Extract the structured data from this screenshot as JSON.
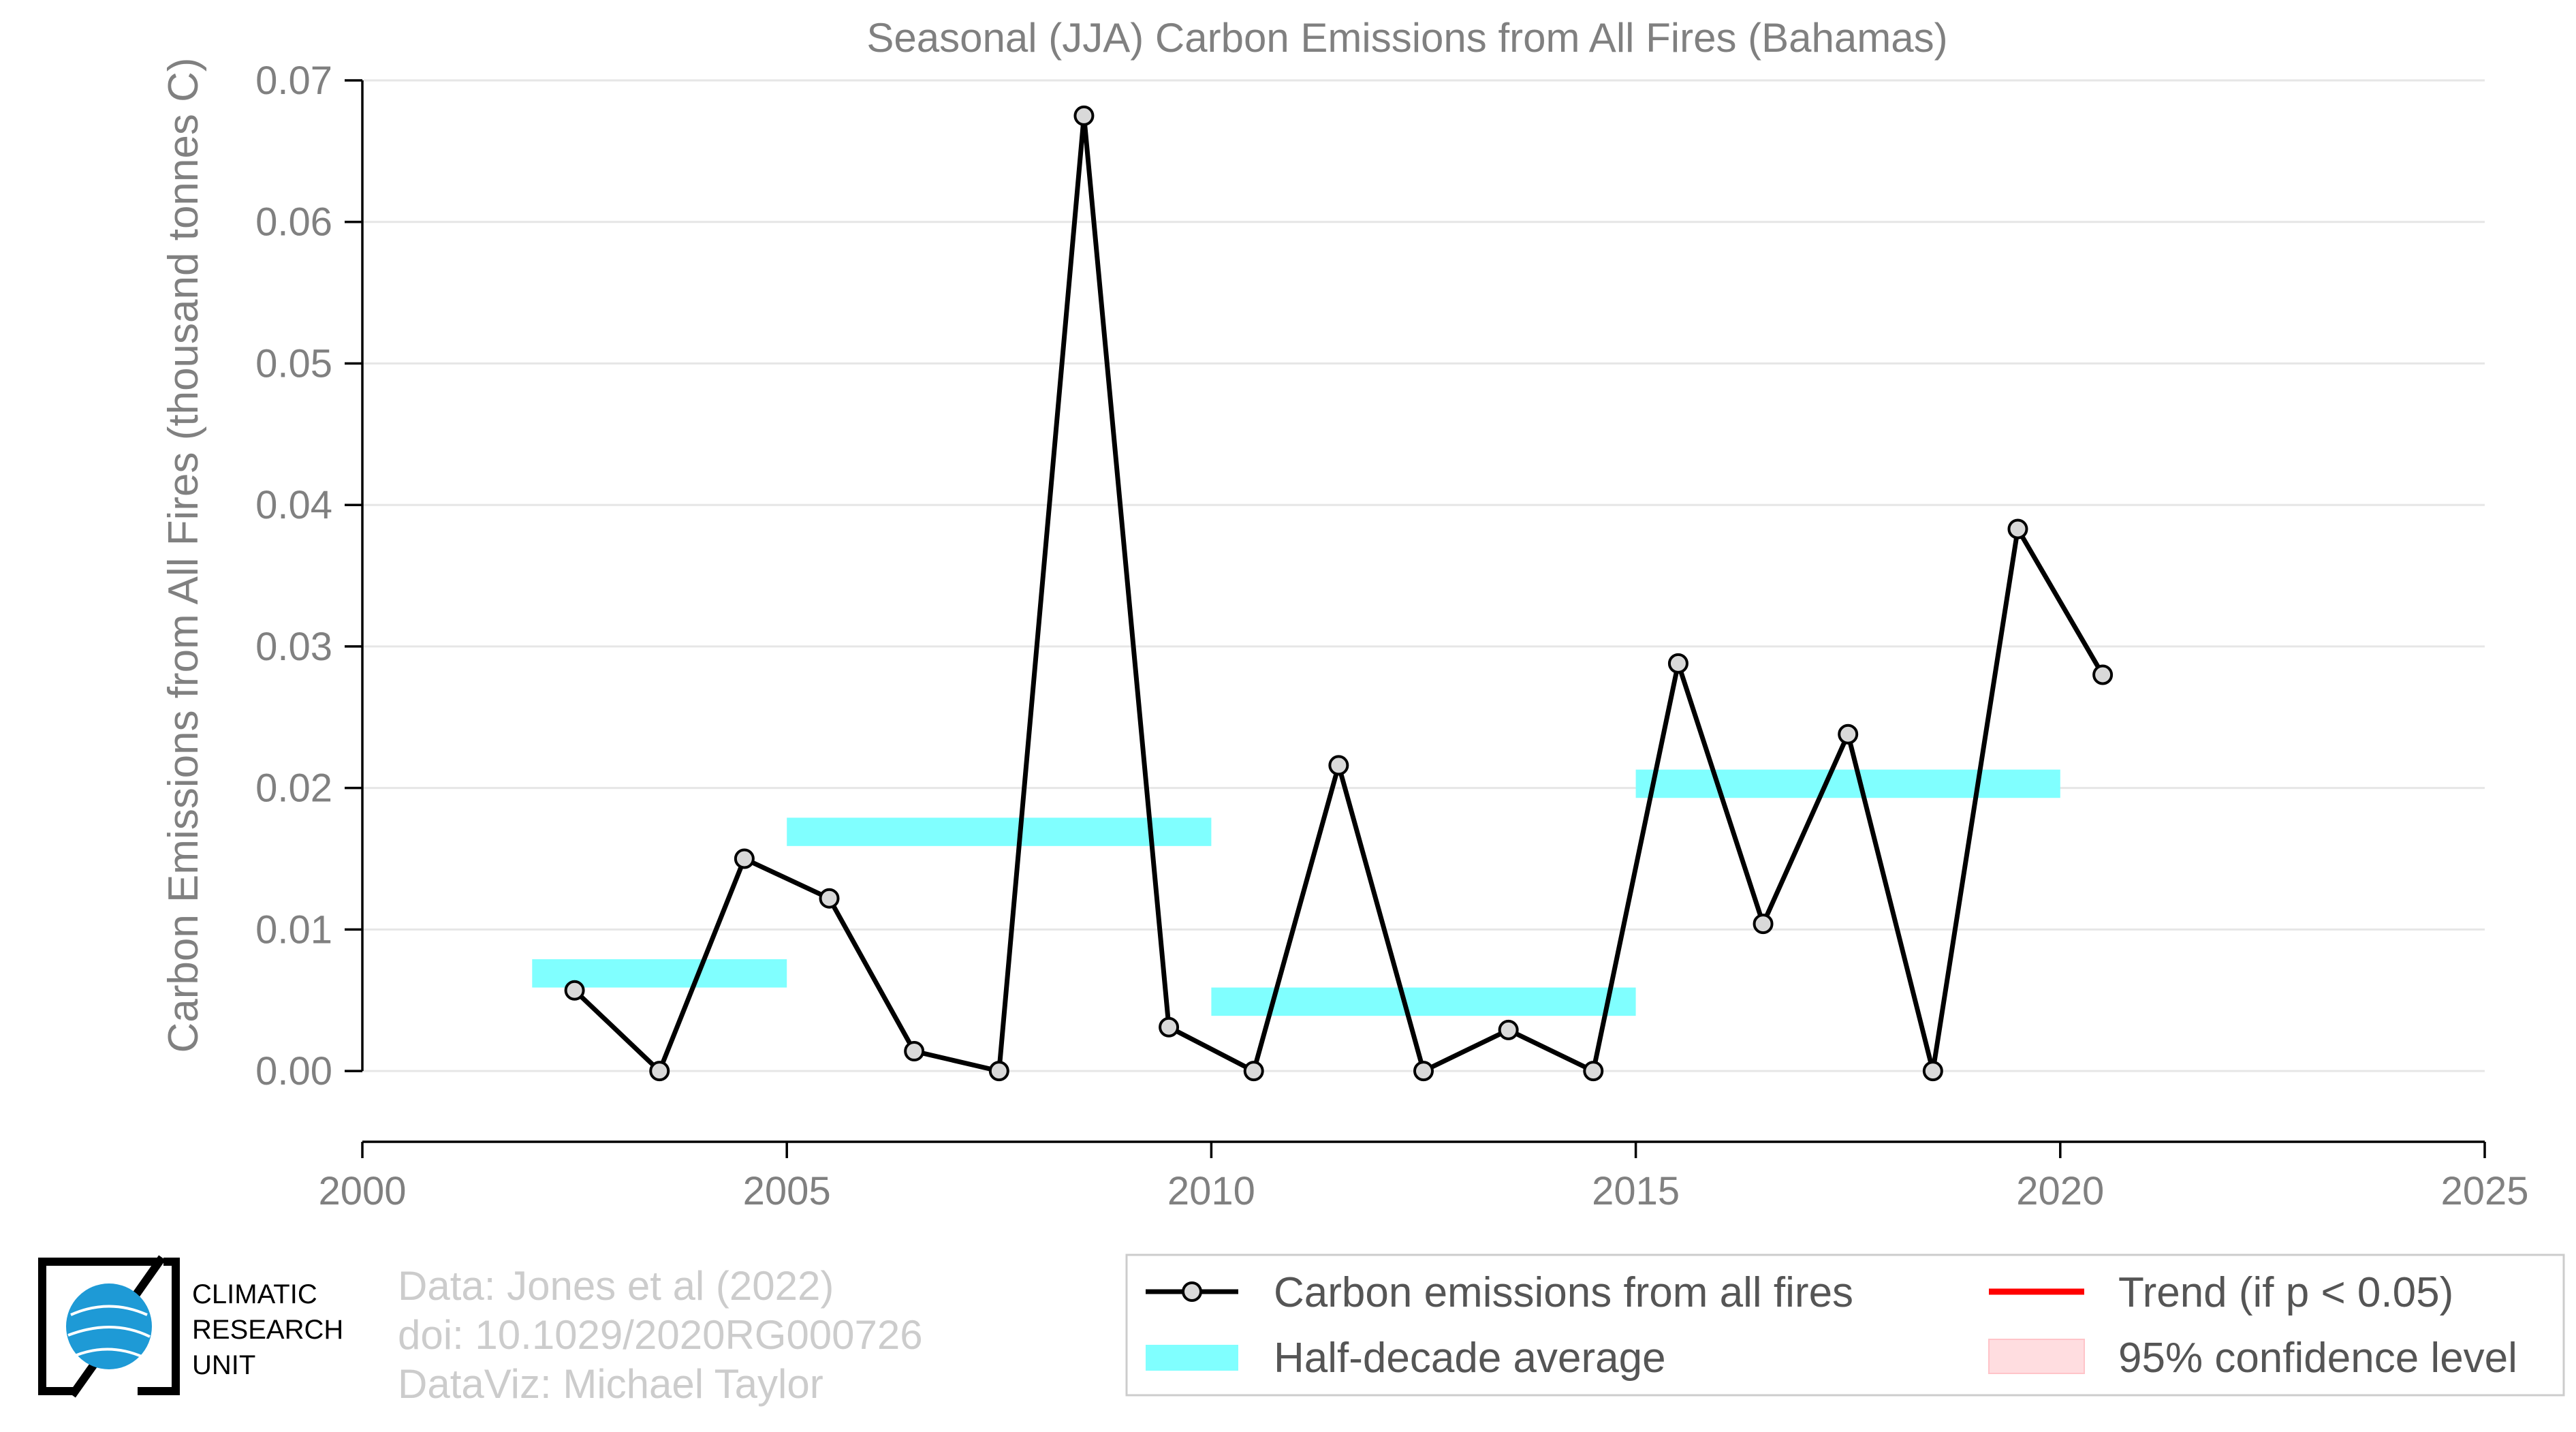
{
  "chart_data": {
    "type": "line",
    "title": "Seasonal (JJA) Carbon Emissions from All Fires (Bahamas)",
    "xlabel": "",
    "ylabel": "Carbon Emissions from All Fires (thousand tonnes C)",
    "xlim": [
      2000,
      2025
    ],
    "ylim": [
      -0.005,
      0.07
    ],
    "xticks": [
      "2000",
      "2005",
      "2010",
      "2015",
      "2020",
      "2025"
    ],
    "yticks": [
      "0.00",
      "0.01",
      "0.02",
      "0.03",
      "0.04",
      "0.05",
      "0.06",
      "0.07"
    ],
    "grid": true,
    "series": [
      {
        "name": "Carbon emissions from all fires",
        "color": "#000000",
        "x": [
          2002.5,
          2003.5,
          2004.5,
          2005.5,
          2006.5,
          2007.5,
          2008.5,
          2009.5,
          2010.5,
          2011.5,
          2012.5,
          2013.5,
          2014.5,
          2015.5,
          2016.5,
          2017.5,
          2018.5,
          2019.5,
          2020.5
        ],
        "values": [
          0.0057,
          0.0,
          0.015,
          0.0122,
          0.0014,
          0.0,
          0.0675,
          0.0031,
          0.0,
          0.0216,
          0.0,
          0.0029,
          0.0,
          0.0288,
          0.0104,
          0.0238,
          0.0,
          0.0383,
          0.028
        ]
      }
    ],
    "half_decade_average": {
      "name": "Half-decade average",
      "color": "#80ffff",
      "segments": [
        {
          "start": 2002,
          "end": 2005,
          "value": 0.0069
        },
        {
          "start": 2005,
          "end": 2010,
          "value": 0.0169
        },
        {
          "start": 2010,
          "end": 2015,
          "value": 0.0049
        },
        {
          "start": 2015,
          "end": 2020,
          "value": 0.0203
        }
      ]
    },
    "legend": {
      "placement": "bottom-right",
      "items": [
        {
          "label": "Carbon emissions from all fires",
          "kind": "line-marker",
          "color": "#000000"
        },
        {
          "label": "Trend (if p < 0.05)",
          "kind": "line",
          "color": "#ff0000"
        },
        {
          "label": "Half-decade average",
          "kind": "band",
          "color": "#80ffff"
        },
        {
          "label": "95% confidence level",
          "kind": "patch",
          "color": "#ffdde0"
        }
      ]
    }
  },
  "credits": [
    "Data: Jones et al (2022)",
    "doi: 10.1029/2020RG000726",
    "DataViz: Michael Taylor"
  ],
  "logo": {
    "lines": [
      "CLIMATIC",
      "RESEARCH",
      "UNIT"
    ],
    "globe_color": "#1e9ad6"
  }
}
